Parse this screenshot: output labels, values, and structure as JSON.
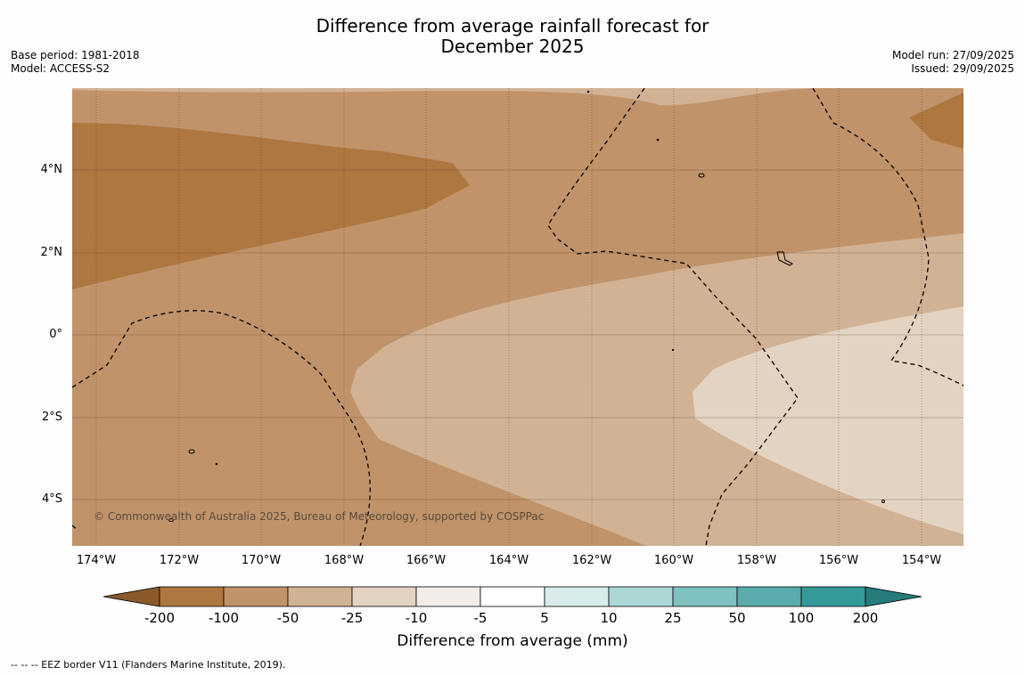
{
  "title": {
    "line1": "Difference from average rainfall forecast for",
    "line2": "December 2025"
  },
  "meta": {
    "base_period": "Base period: 1981-2018",
    "model": "Model: ACCESS-S2",
    "model_run": "Model run: 27/09/2025",
    "issued": "Issued: 29/09/2025"
  },
  "map": {
    "lat_labels": [
      "4°N",
      "2°N",
      "0°",
      "2°S",
      "4°S"
    ],
    "lon_labels": [
      "174°W",
      "172°W",
      "170°W",
      "168°W",
      "166°W",
      "164°W",
      "162°W",
      "160°W",
      "158°W",
      "156°W",
      "154°W"
    ],
    "copyright": "© Commonwealth of Australia 2025, Bureau of Meteorology, supported by COSPPac"
  },
  "colorbar": {
    "tick_labels": [
      "-200",
      "-100",
      "-50",
      "-25",
      "-10",
      "-5",
      "5",
      "10",
      "25",
      "50",
      "100",
      "200"
    ],
    "colors": [
      "#8c5a2a",
      "#ad773f",
      "#c0936a",
      "#d2b294",
      "#e3d3c2",
      "#f1ede8",
      "#ffffff",
      "#d8ecea",
      "#acd7d7",
      "#80c1c1",
      "#5aabab",
      "#339a99",
      "#257c7b"
    ],
    "title": "Difference from average (mm)"
  },
  "footnote": "--  --  -- EEZ border V11 (Flanders Marine Institute, 2019)."
}
